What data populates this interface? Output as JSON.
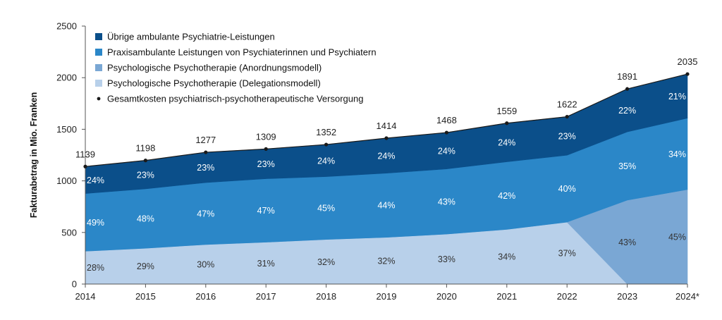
{
  "chart_data": {
    "type": "area",
    "ylabel": "Fakturabetrag in Mio. Franken",
    "xlabel": "",
    "ylim": [
      0,
      2500
    ],
    "yticks": [
      0,
      500,
      1000,
      1500,
      2000,
      2500
    ],
    "categories": [
      "2014",
      "2015",
      "2016",
      "2017",
      "2018",
      "2019",
      "2020",
      "2021",
      "2022",
      "2023",
      "2024*"
    ],
    "totals": [
      1139,
      1198,
      1277,
      1309,
      1352,
      1414,
      1468,
      1559,
      1622,
      1891,
      2035
    ],
    "stack_order": [
      "delegation",
      "anordnung",
      "praxis",
      "uebrige"
    ],
    "series": [
      {
        "key": "uebrige",
        "name": "Übrige ambulante Psychiatrie-Leistungen",
        "color": "#0b4f8a",
        "percentages": [
          24,
          23,
          23,
          23,
          24,
          24,
          24,
          24,
          23,
          22,
          21
        ],
        "labels": [
          "24%",
          "23%",
          "23%",
          "23%",
          "24%",
          "24%",
          "24%",
          "24%",
          "23%",
          "22%",
          "21%"
        ]
      },
      {
        "key": "praxis",
        "name": "Praxisambulante Leistungen von Psychiaterinnen und Psychiatern",
        "color": "#2b87c8",
        "percentages": [
          49,
          48,
          47,
          47,
          45,
          44,
          43,
          42,
          40,
          35,
          34
        ],
        "labels": [
          "49%",
          "48%",
          "47%",
          "47%",
          "45%",
          "44%",
          "43%",
          "42%",
          "40%",
          "35%",
          "34%"
        ]
      },
      {
        "key": "anordnung",
        "name": "Psychologische Psychotherapie (Anordnungsmodell)",
        "color": "#7aa7d4",
        "percentages": [
          0,
          0,
          0,
          0,
          0,
          0,
          0,
          0,
          0,
          43,
          45
        ],
        "labels": [
          "",
          "",
          "",
          "",
          "",
          "",
          "",
          "",
          "",
          "43%",
          "45%"
        ]
      },
      {
        "key": "delegation",
        "name": "Psychologische Psychotherapie (Delegationsmodell)",
        "color": "#b8d0ea",
        "percentages": [
          28,
          29,
          30,
          31,
          32,
          32,
          33,
          34,
          37,
          0,
          0
        ],
        "labels": [
          "28%",
          "29%",
          "30%",
          "31%",
          "32%",
          "32%",
          "33%",
          "34%",
          "37%",
          "",
          ""
        ]
      }
    ],
    "total_series_name": "Gesamtkosten psychiatrisch-psychotherapeutische Versorgung",
    "total_color": "#1a1a1a",
    "legend_position": "top-left",
    "grid": false
  }
}
